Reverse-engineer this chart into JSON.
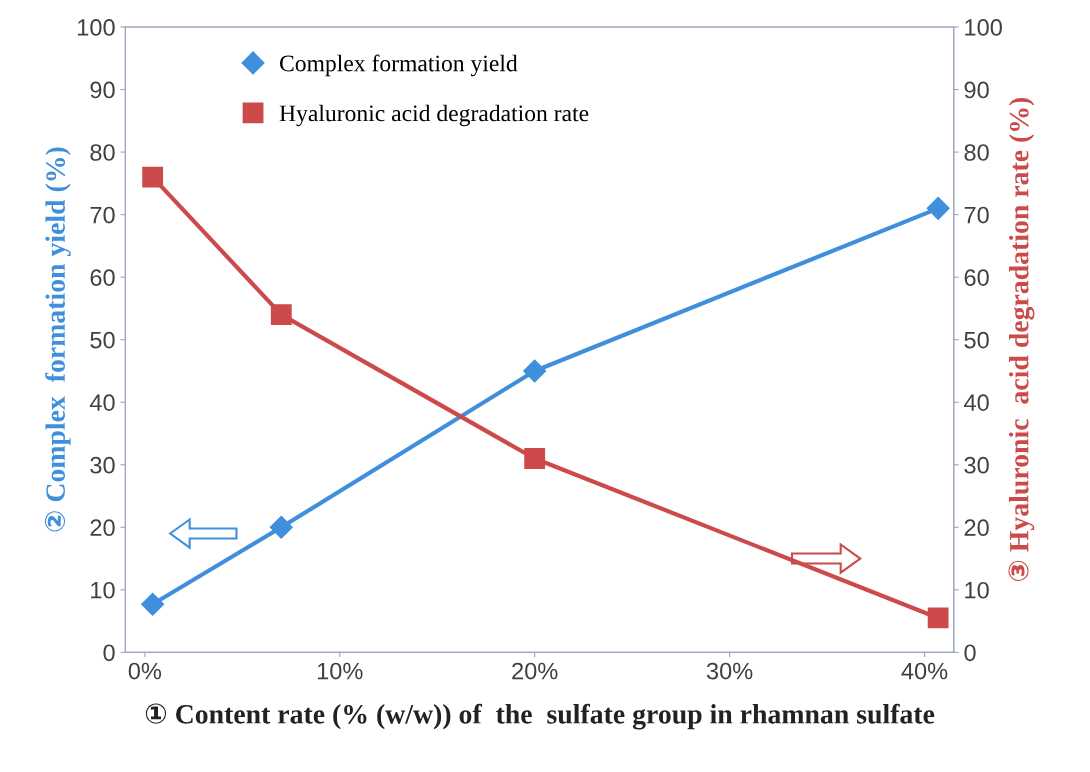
{
  "chart_data": {
    "type": "line",
    "xlabel": "① Content rate (% (w/w)) of  the  sulfate group in rhamnan sulfate",
    "ylabel": "② Complex  formation yield (%)",
    "y2label": "③ Hyaluronic  acid degradation rate (%)",
    "xlim": [
      -1,
      41.5
    ],
    "xticks": [
      {
        "value": 0,
        "label": "0%"
      },
      {
        "value": 10,
        "label": "10%"
      },
      {
        "value": 20,
        "label": "20%"
      },
      {
        "value": 30,
        "label": "30%"
      },
      {
        "value": 40,
        "label": "40%"
      }
    ],
    "ylim": [
      0,
      100
    ],
    "yticks": [
      0,
      10,
      20,
      30,
      40,
      50,
      60,
      70,
      80,
      90,
      100
    ],
    "y2lim": [
      0,
      100
    ],
    "y2ticks": [
      0,
      10,
      20,
      30,
      40,
      50,
      60,
      70,
      80,
      90,
      100
    ],
    "grid": false,
    "legend": "top left",
    "series": [
      {
        "name": "Complex formation yield",
        "color": "#3f8fdc",
        "marker": "diamond",
        "x": [
          0.4,
          7,
          20,
          40.7
        ],
        "values": [
          7.7,
          20,
          45,
          71
        ]
      },
      {
        "name": "Hyaluronic acid degradation rate",
        "color": "#cc4a4a",
        "marker": "square",
        "axis": "y2",
        "x": [
          0.4,
          7,
          20,
          40.7
        ],
        "values": [
          76,
          54,
          31,
          5.5
        ]
      }
    ]
  }
}
